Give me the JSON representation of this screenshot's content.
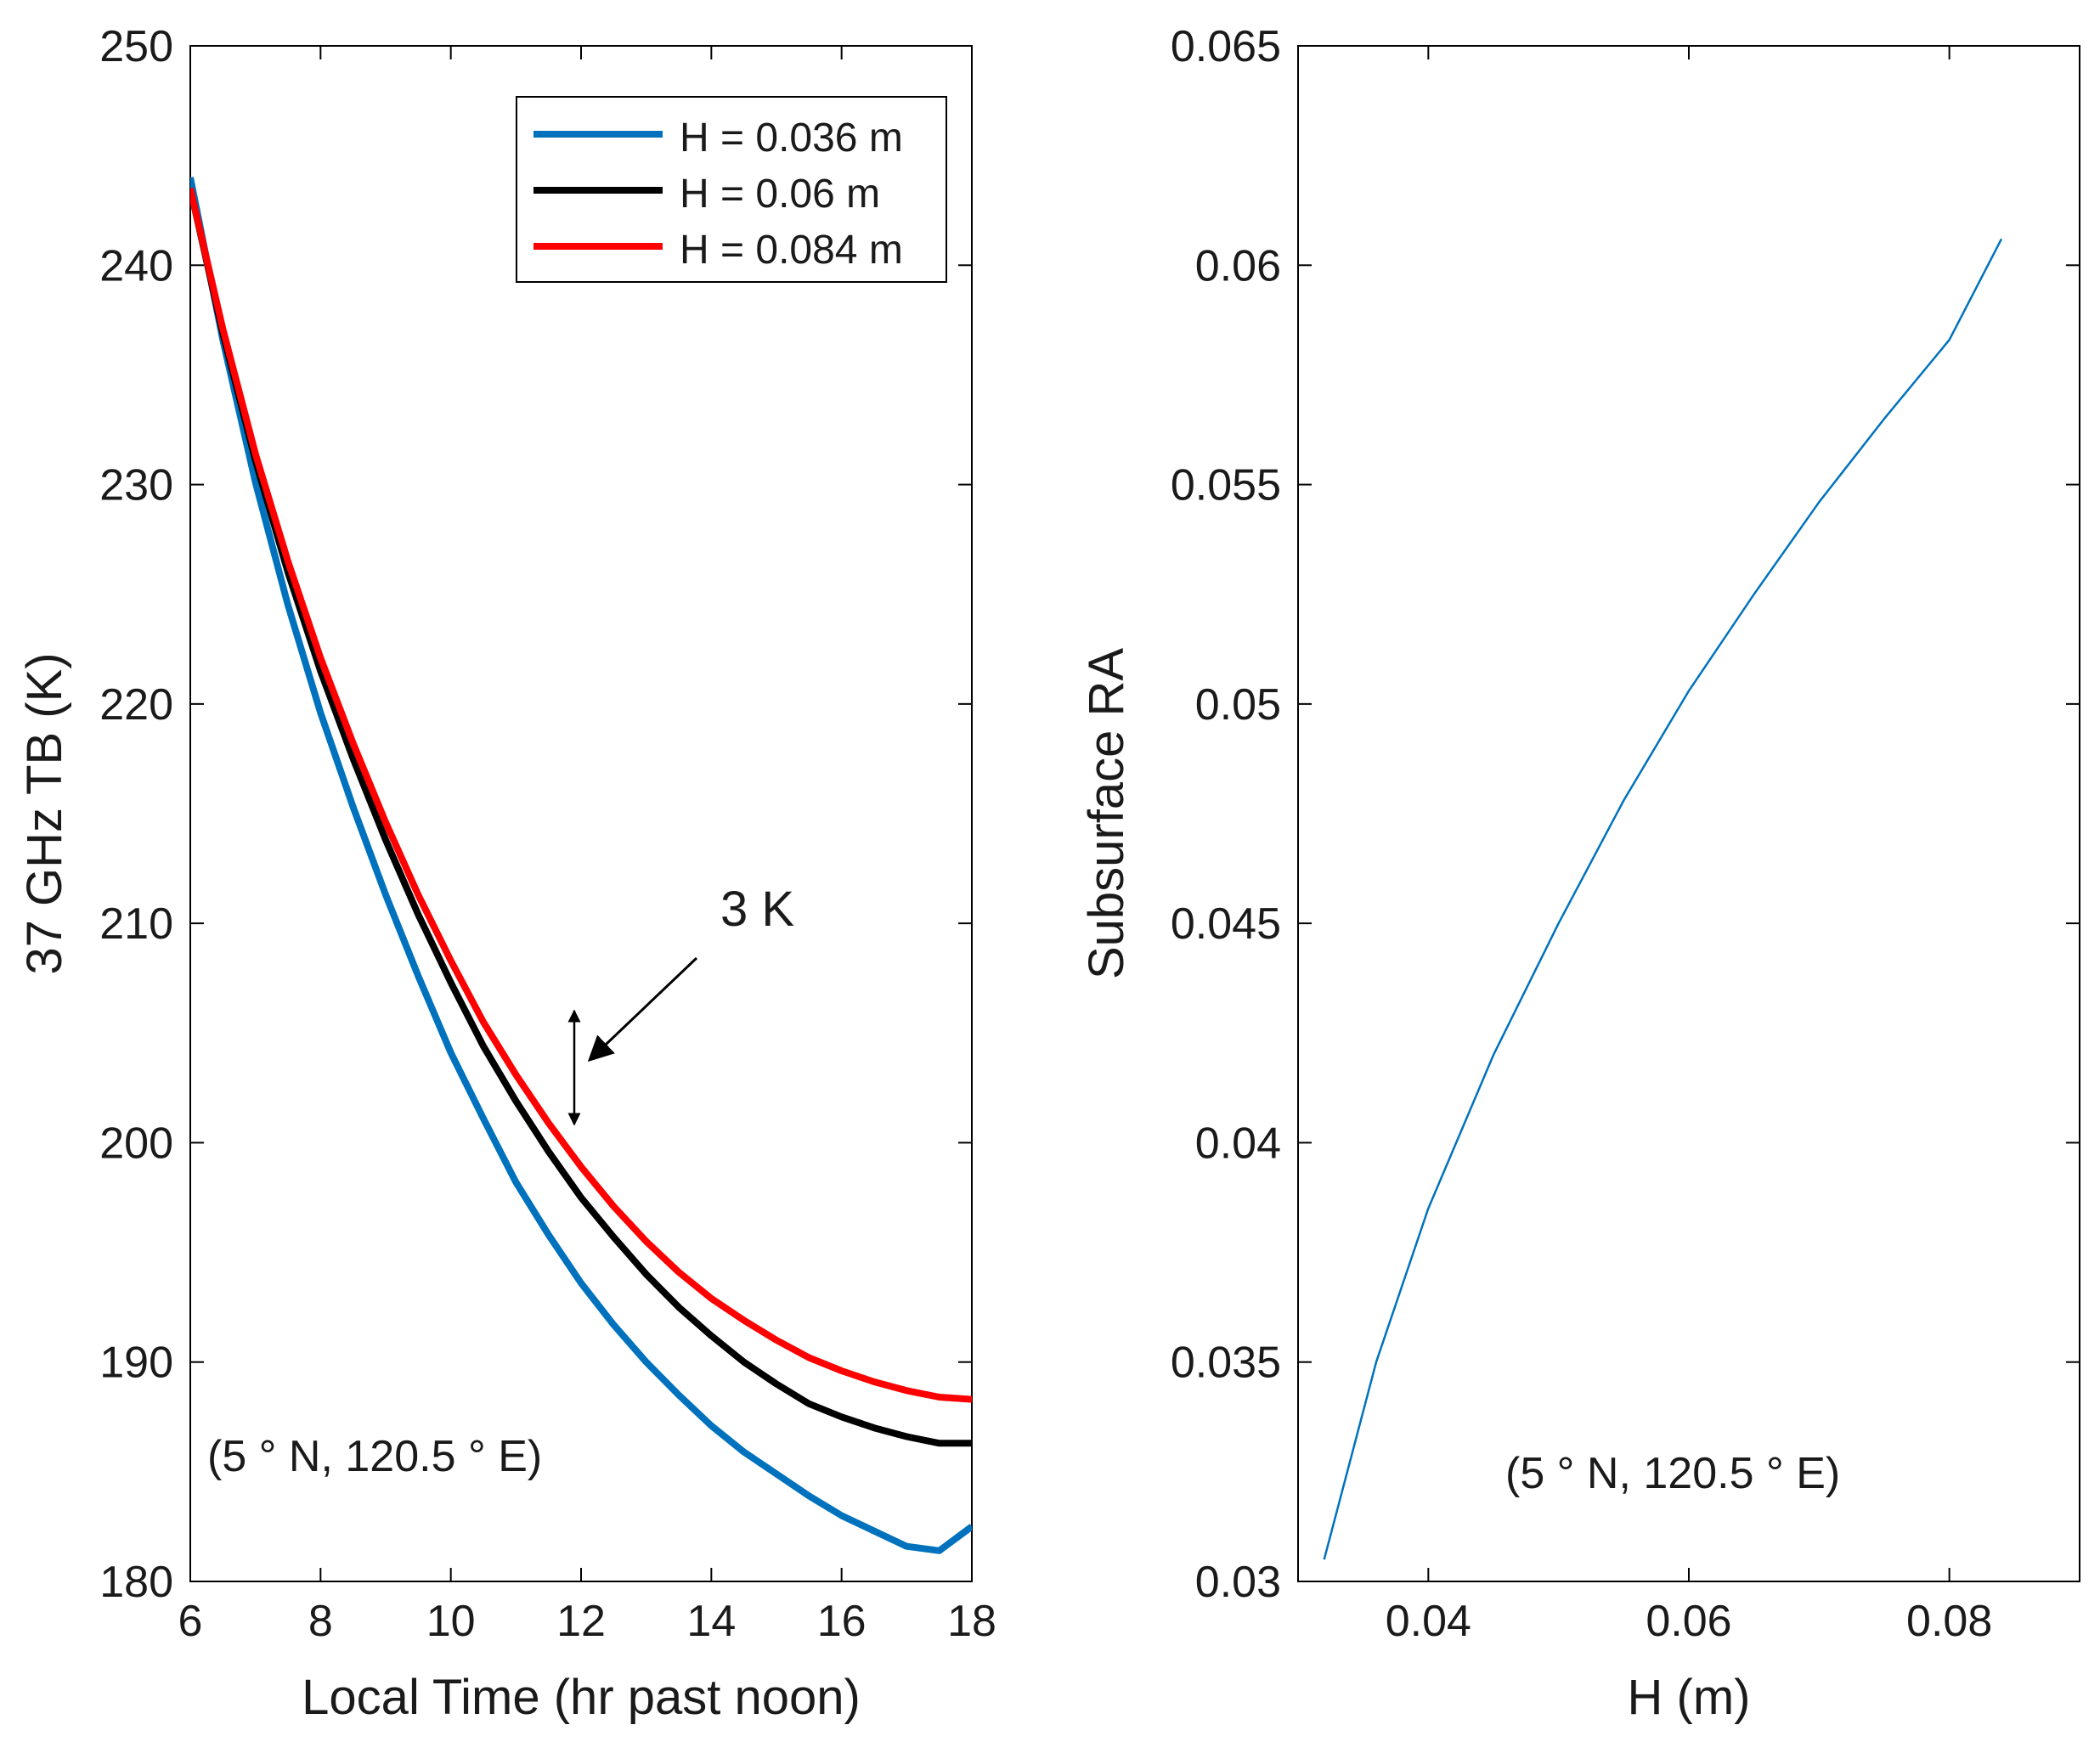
{
  "chart_data": [
    {
      "type": "line",
      "xlabel": "Local Time (hr past noon)",
      "ylabel": "37 GHz TB (K)",
      "xlim": [
        6,
        18
      ],
      "ylim": [
        180,
        250
      ],
      "xticks": [
        "6",
        "8",
        "10",
        "12",
        "14",
        "16",
        "18"
      ],
      "yticks": [
        "180",
        "190",
        "200",
        "210",
        "220",
        "230",
        "240",
        "250"
      ],
      "legend_position": "top-right",
      "series": [
        {
          "name": "H = 0.036 m",
          "color": "#0072bd",
          "x": [
            6,
            6.5,
            7,
            7.5,
            8,
            8.5,
            9,
            9.5,
            10,
            10.5,
            11,
            11.5,
            12,
            12.5,
            13,
            13.5,
            14,
            14.5,
            15,
            15.5,
            16,
            16.5,
            17,
            17.5,
            18
          ],
          "y": [
            244,
            236.6,
            230.1,
            224.5,
            219.6,
            215.3,
            211.3,
            207.6,
            204.1,
            201.1,
            198.2,
            195.8,
            193.6,
            191.7,
            190.0,
            188.5,
            187.1,
            185.9,
            184.9,
            183.9,
            183.0,
            182.3,
            181.6,
            181.4,
            182.5
          ]
        },
        {
          "name": "H = 0.06 m",
          "color": "#000000",
          "x": [
            6,
            6.5,
            7,
            7.5,
            8,
            8.5,
            9,
            9.5,
            10,
            10.5,
            11,
            11.5,
            12,
            12.5,
            13,
            13.5,
            14,
            14.5,
            15,
            15.5,
            16,
            16.5,
            17,
            17.5,
            18
          ],
          "y": [
            243.5,
            236.9,
            231.1,
            226.0,
            221.5,
            217.5,
            213.8,
            210.4,
            207.3,
            204.4,
            201.9,
            199.6,
            197.5,
            195.7,
            194.0,
            192.5,
            191.2,
            190.0,
            189.0,
            188.1,
            187.5,
            187.0,
            186.6,
            186.3,
            186.3
          ]
        },
        {
          "name": "H = 0.084 m",
          "color": "#ff0000",
          "x": [
            6,
            6.5,
            7,
            7.5,
            8,
            8.5,
            9,
            9.5,
            10,
            10.5,
            11,
            11.5,
            12,
            12.5,
            13,
            13.5,
            14,
            14.5,
            15,
            15.5,
            16,
            16.5,
            17,
            17.5,
            18
          ],
          "y": [
            243.5,
            237.1,
            231.4,
            226.5,
            222.1,
            218.2,
            214.6,
            211.3,
            208.3,
            205.5,
            203.1,
            200.9,
            198.9,
            197.1,
            195.5,
            194.1,
            192.9,
            191.9,
            191.0,
            190.2,
            189.6,
            189.1,
            188.7,
            188.4,
            188.3
          ]
        }
      ],
      "annotations": [
        {
          "text": "3 K",
          "role": "arrow-label"
        },
        {
          "text": "(5 ° N, 120.5 ° E)",
          "role": "location"
        }
      ]
    },
    {
      "type": "line",
      "xlabel": "H (m)",
      "ylabel": "Subsurface RA",
      "xlim": [
        0.03,
        0.09
      ],
      "ylim": [
        0.03,
        0.065
      ],
      "xticks": [
        "0.04",
        "0.06",
        "0.08"
      ],
      "yticks": [
        "0.03",
        "0.035",
        "0.04",
        "0.045",
        "0.05",
        "0.055",
        "0.06",
        "0.065"
      ],
      "series": [
        {
          "name": "Subsurface RA",
          "color": "#0072bd",
          "x": [
            0.032,
            0.036,
            0.04,
            0.045,
            0.05,
            0.055,
            0.06,
            0.065,
            0.07,
            0.075,
            0.08,
            0.084
          ],
          "y": [
            0.0305,
            0.035,
            0.0385,
            0.042,
            0.045,
            0.0478,
            0.0503,
            0.0525,
            0.0546,
            0.0565,
            0.0583,
            0.0606
          ]
        }
      ],
      "annotations": [
        {
          "text": "(5 ° N, 120.5 ° E)",
          "role": "location"
        }
      ]
    }
  ]
}
